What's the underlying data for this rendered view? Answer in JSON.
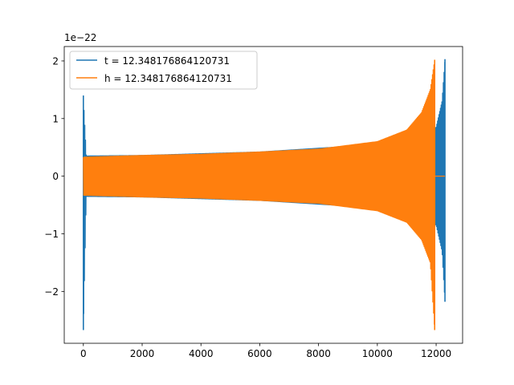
{
  "chart_data": {
    "type": "line",
    "title": "",
    "xlabel": "",
    "ylabel": "",
    "y_offset_label": "1e−22",
    "xlim": [
      -650,
      12900
    ],
    "ylim": [
      -2.9,
      2.25
    ],
    "xticks": [
      0,
      2000,
      4000,
      6000,
      8000,
      10000,
      12000
    ],
    "xtick_labels": [
      "0",
      "2000",
      "4000",
      "6000",
      "8000",
      "10000",
      "12000"
    ],
    "yticks": [
      -2,
      -1,
      0,
      1,
      2
    ],
    "ytick_labels": [
      "−2",
      "−1",
      "0",
      "1",
      "2"
    ],
    "grid": false,
    "legend_position": "top-left",
    "series": [
      {
        "name": "t = 12.348176864120731",
        "color": "#1f77b4",
        "description": "oscillating strain signal with sharp spikes near x=0 and a chirp ending near x=12300",
        "envelope_points": [
          {
            "x": 0,
            "upper": 1.4,
            "lower": -2.67
          },
          {
            "x": 100,
            "upper": 0.35,
            "lower": -0.35
          },
          {
            "x": 2000,
            "upper": 0.36,
            "lower": -0.36
          },
          {
            "x": 6000,
            "upper": 0.42,
            "lower": -0.42
          },
          {
            "x": 10000,
            "upper": 0.55,
            "lower": -0.55
          },
          {
            "x": 11900,
            "upper": 0.8,
            "lower": -0.8
          },
          {
            "x": 12000,
            "upper": 0.85,
            "lower": -0.85
          },
          {
            "x": 12200,
            "upper": 1.3,
            "lower": -1.3
          },
          {
            "x": 12300,
            "upper": 2.03,
            "lower": -2.18
          }
        ]
      },
      {
        "name": "h = 12.348176864120731",
        "color": "#ff7f0e",
        "description": "chirp waveform growing in amplitude, peaking near x=11950, then flat at zero",
        "envelope_points": [
          {
            "x": 0,
            "upper": 0.33,
            "lower": -0.33
          },
          {
            "x": 2000,
            "upper": 0.36,
            "lower": -0.36
          },
          {
            "x": 4000,
            "upper": 0.38,
            "lower": -0.38
          },
          {
            "x": 6000,
            "upper": 0.42,
            "lower": -0.42
          },
          {
            "x": 8000,
            "upper": 0.47,
            "lower": -0.47
          },
          {
            "x": 10000,
            "upper": 0.6,
            "lower": -0.6
          },
          {
            "x": 11000,
            "upper": 0.8,
            "lower": -0.8
          },
          {
            "x": 11500,
            "upper": 1.1,
            "lower": -1.1
          },
          {
            "x": 11800,
            "upper": 1.5,
            "lower": -1.5
          },
          {
            "x": 11950,
            "upper": 2.02,
            "lower": -2.67
          },
          {
            "x": 12300,
            "upper": 0.0,
            "lower": 0.0
          }
        ]
      }
    ]
  }
}
